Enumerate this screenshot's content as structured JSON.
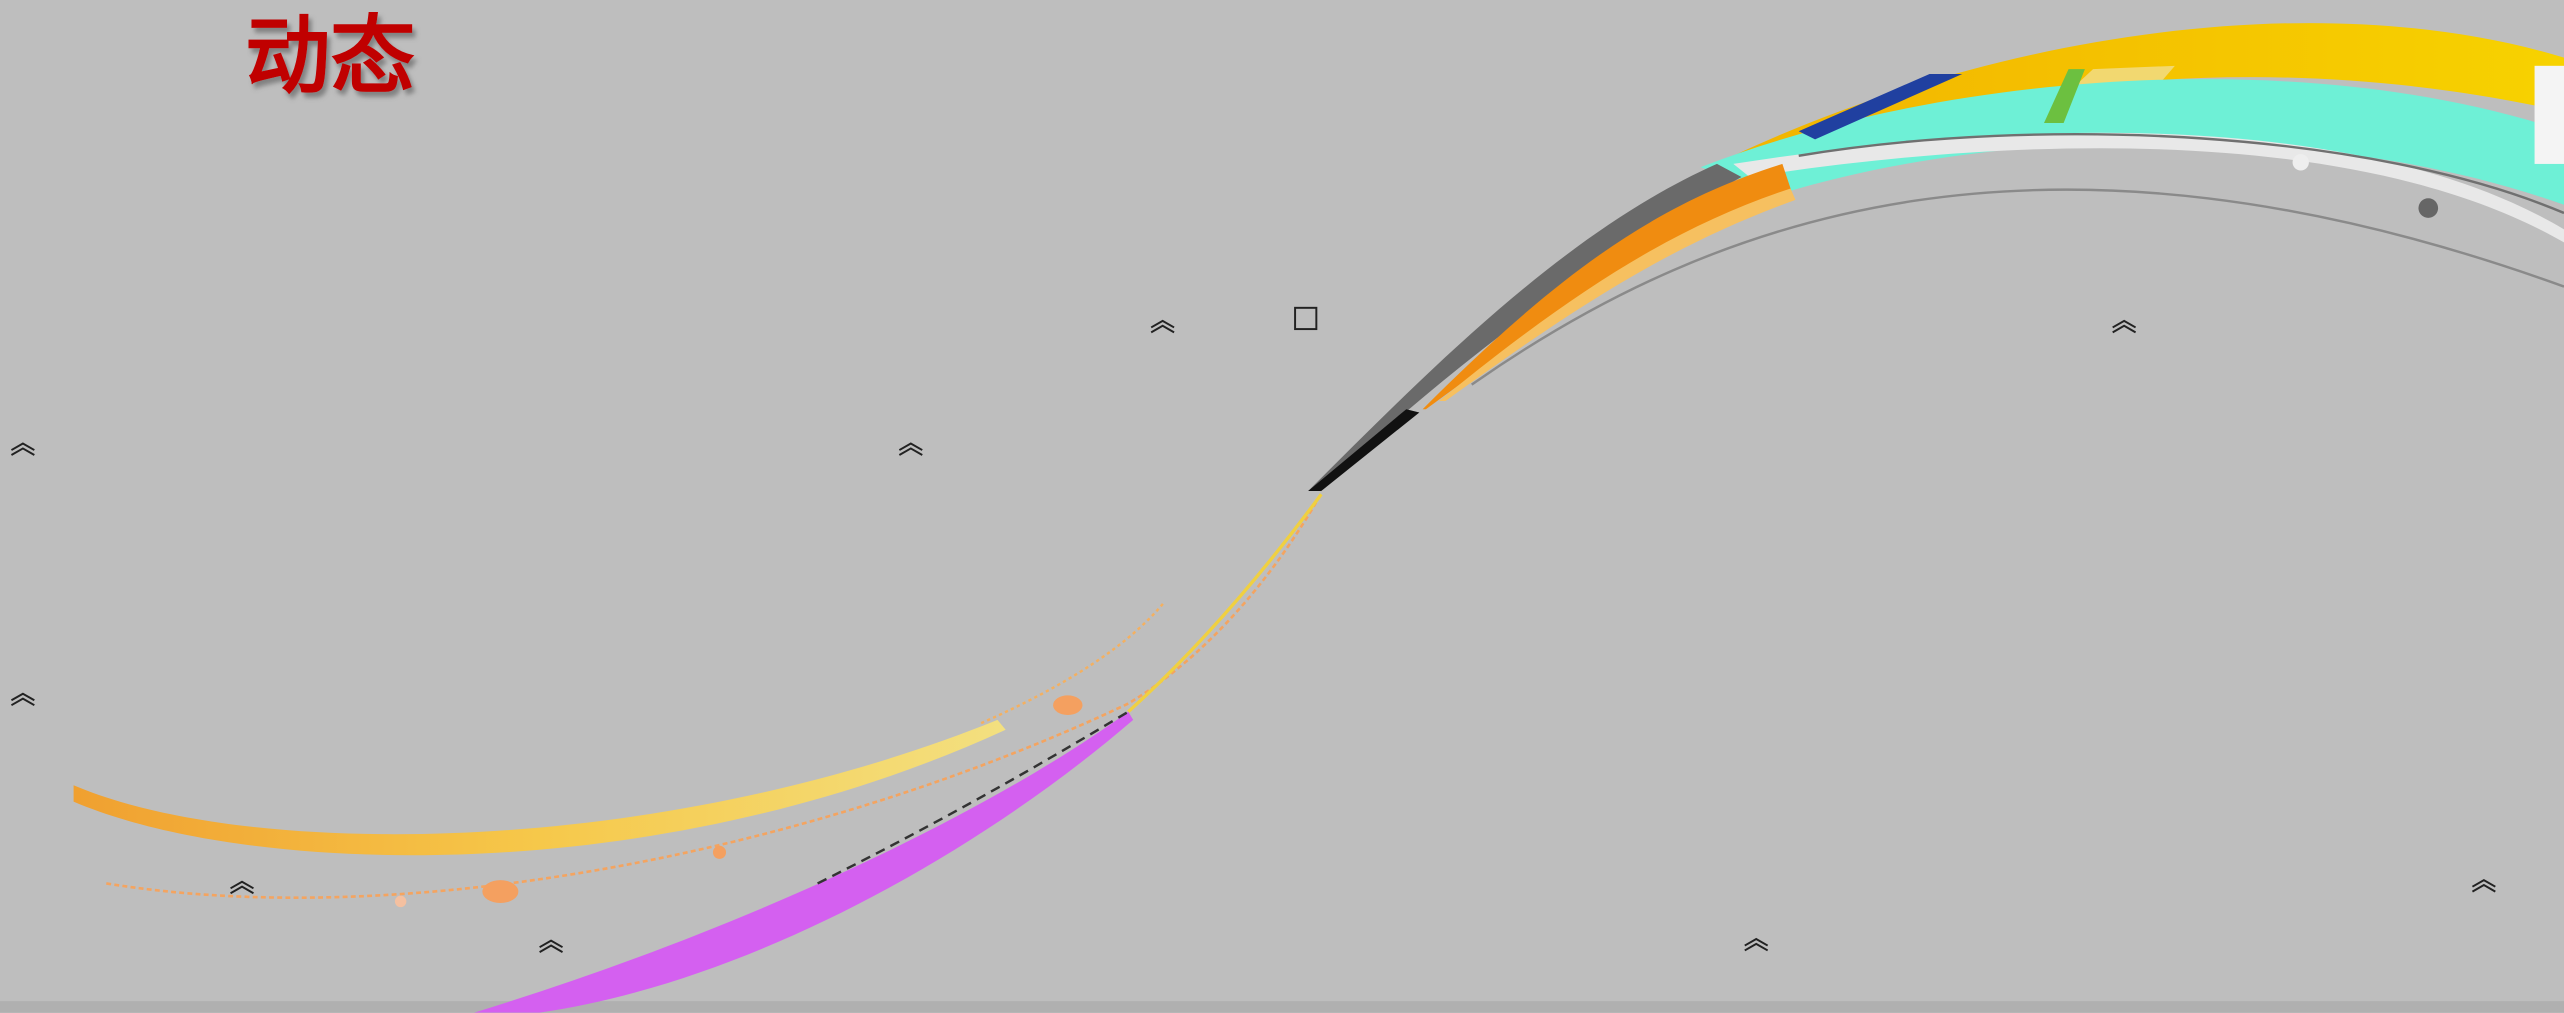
{
  "title": "动态"
}
